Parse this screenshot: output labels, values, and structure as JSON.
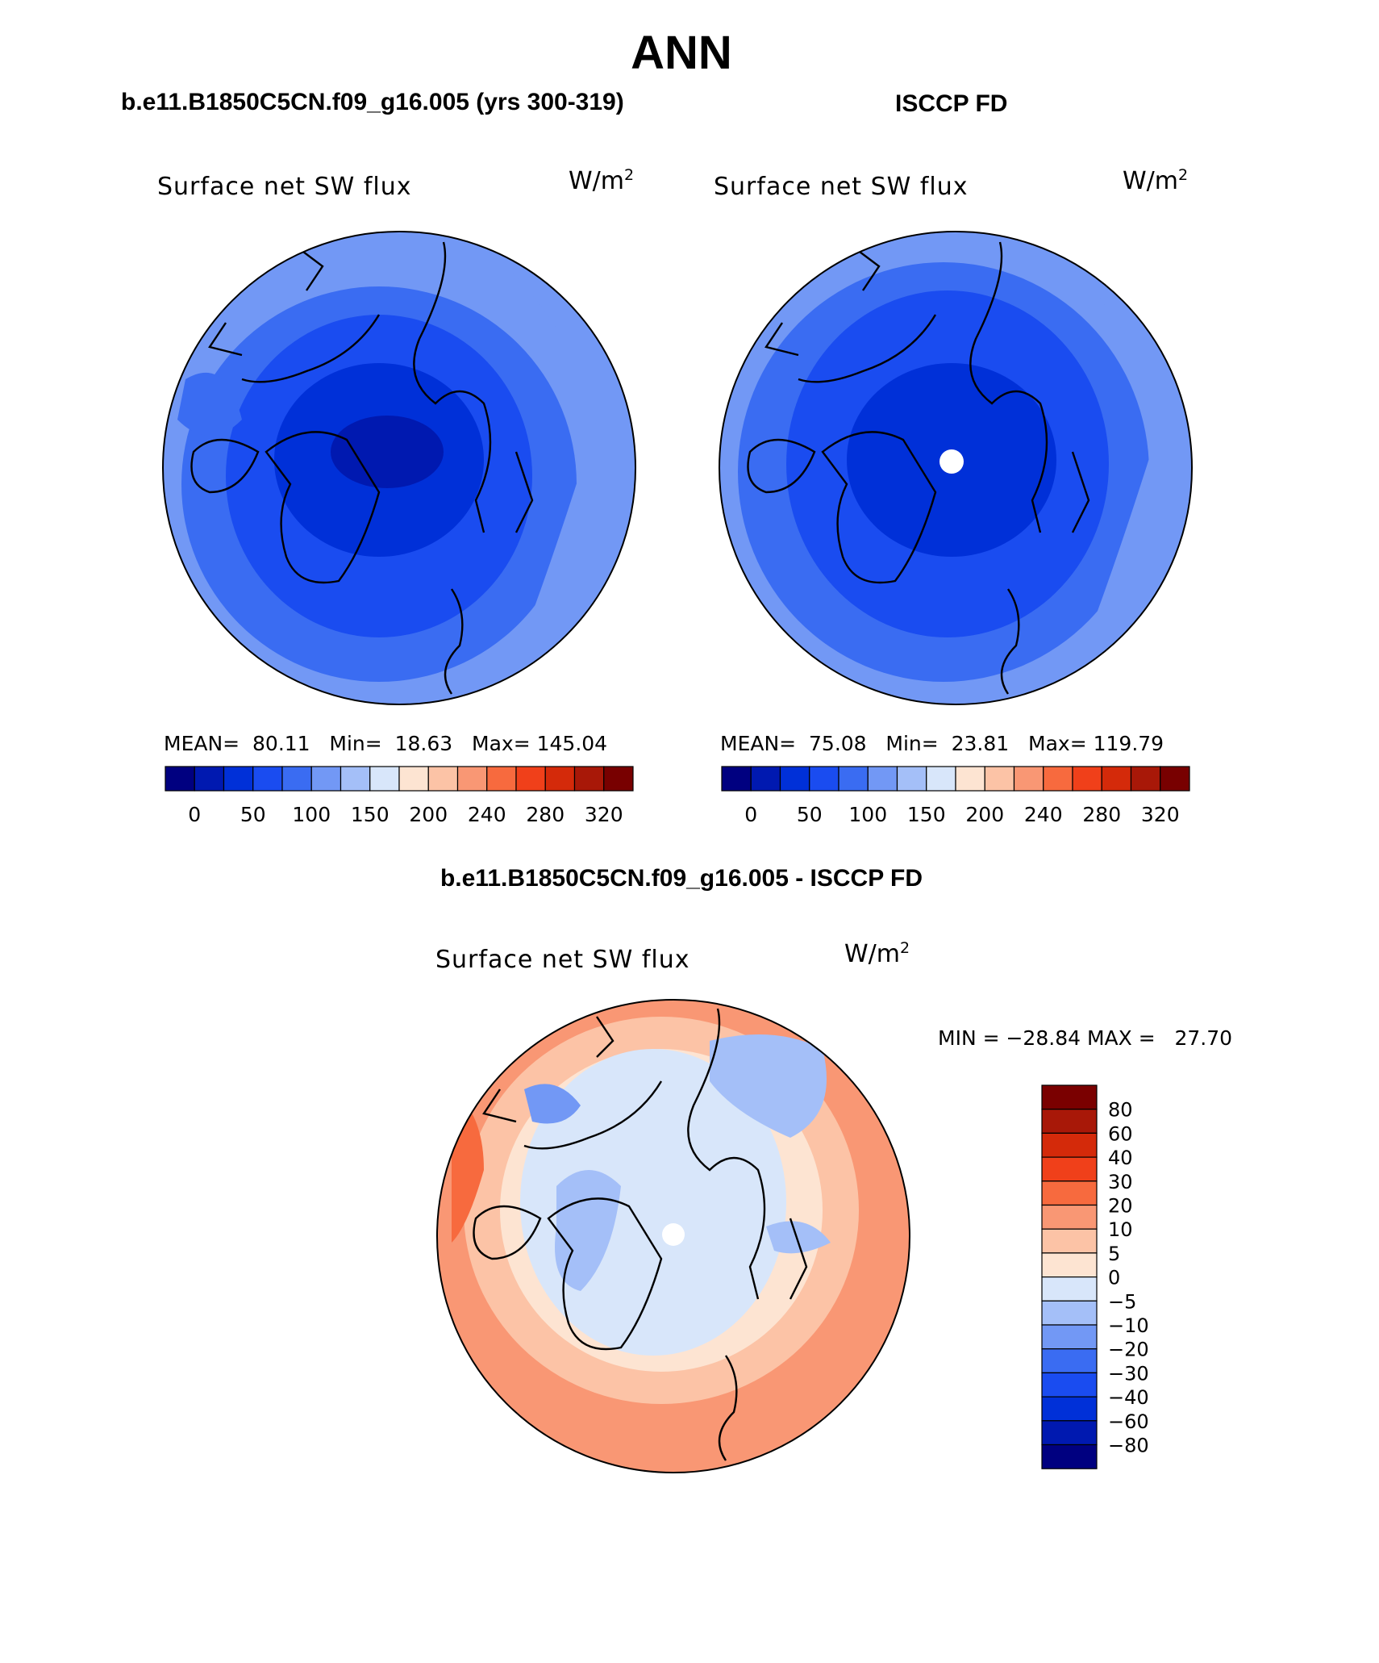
{
  "main_title": "ANN",
  "panels": {
    "model": {
      "case_title": "b.e11.B1850C5CN.f09_g16.005 (yrs 300-319)",
      "variable": "Surface net SW flux",
      "units_base": "W/m",
      "units_exp": "2",
      "stats": "MEAN=  80.11   Min=  18.63   Max= 145.04",
      "colorbar_labels": [
        "0",
        "50",
        "100",
        "150",
        "200",
        "240",
        "280",
        "320"
      ]
    },
    "obs": {
      "case_title": "ISCCP FD",
      "variable": "Surface net SW flux",
      "units_base": "W/m",
      "units_exp": "2",
      "stats": "MEAN=  75.08   Min=  23.81   Max= 119.79",
      "colorbar_labels": [
        "0",
        "50",
        "100",
        "150",
        "200",
        "240",
        "280",
        "320"
      ]
    },
    "diff": {
      "case_title": "b.e11.B1850C5CN.f09_g16.005 - ISCCP FD",
      "variable": "Surface net SW flux",
      "units_base": "W/m",
      "units_exp": "2",
      "stats": "MIN = −28.84 MAX =   27.70",
      "colorbar_labels": [
        "80",
        "60",
        "40",
        "30",
        "20",
        "10",
        "5",
        "0",
        "−5",
        "−10",
        "−20",
        "−30",
        "−40",
        "−60",
        "−80"
      ]
    }
  },
  "chart_data": [
    {
      "type": "heatmap",
      "projection": "north-polar-stereographic",
      "title": "Surface net SW flux",
      "subtitle": "b.e11.B1850C5CN.f09_g16.005 (yrs 300-319)",
      "units": "W/m2",
      "mean": 80.11,
      "min": 18.63,
      "max": 145.04,
      "contour_levels": [
        0,
        25,
        50,
        75,
        100,
        125,
        150,
        175,
        200,
        220,
        240,
        260,
        280,
        300,
        320
      ]
    },
    {
      "type": "heatmap",
      "projection": "north-polar-stereographic",
      "title": "Surface net SW flux",
      "subtitle": "ISCCP FD",
      "units": "W/m2",
      "mean": 75.08,
      "min": 23.81,
      "max": 119.79,
      "contour_levels": [
        0,
        25,
        50,
        75,
        100,
        125,
        150,
        175,
        200,
        220,
        240,
        260,
        280,
        300,
        320
      ]
    },
    {
      "type": "heatmap",
      "projection": "north-polar-stereographic",
      "title": "Surface net SW flux",
      "subtitle": "b.e11.B1850C5CN.f09_g16.005 - ISCCP FD",
      "units": "W/m2",
      "min": -28.84,
      "max": 27.7,
      "contour_levels": [
        -80,
        -60,
        -40,
        -30,
        -20,
        -10,
        -5,
        0,
        5,
        10,
        20,
        30,
        40,
        60,
        80
      ]
    }
  ],
  "colors": {
    "abs_colorbar": [
      "#000080",
      "#0019b0",
      "#0030d8",
      "#1a4cf0",
      "#3a6cf2",
      "#7298f5",
      "#a4bff8",
      "#d8e6fa",
      "#fde4d2",
      "#fcc3a6",
      "#f99774",
      "#f76a3e",
      "#f0401a",
      "#d42a0a",
      "#a81808",
      "#780000"
    ],
    "diff_colorbar": [
      "#7a0000",
      "#a81808",
      "#d42a0a",
      "#f0401a",
      "#f76a3e",
      "#f99774",
      "#fcc3a6",
      "#fde4d2",
      "#d8e6fa",
      "#a4bff8",
      "#7298f5",
      "#3a6cf2",
      "#1a4cf0",
      "#0030d8",
      "#0019b0",
      "#000080"
    ]
  }
}
